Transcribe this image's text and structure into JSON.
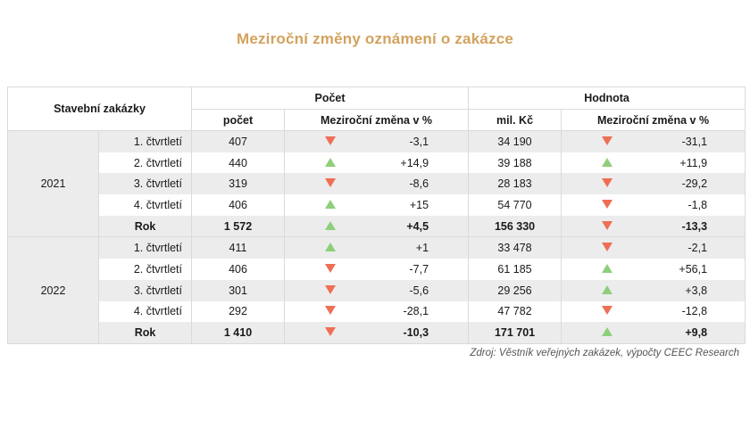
{
  "title": "Meziroční změny oznámení o zakázce",
  "header": {
    "row_label": "Stavební zakázky",
    "group_count": "Počet",
    "group_value": "Hodnota",
    "col_count": "počet",
    "col_change": "Meziroční změna v %",
    "col_value": "mil. Kč",
    "col_change2": "Meziroční změna v %"
  },
  "colors": {
    "up": "#8fce7a",
    "down": "#ee6f55",
    "title": "#d3a25d",
    "shade": "#ececec"
  },
  "years": [
    {
      "year": "2021",
      "rows": [
        {
          "label": "1. čtvrtletí",
          "count": "407",
          "count_dir": "down",
          "count_change": "-3,1",
          "value": "34 190",
          "value_dir": "down",
          "value_change": "-31,1"
        },
        {
          "label": "2. čtvrtletí",
          "count": "440",
          "count_dir": "up",
          "count_change": "+14,9",
          "value": "39 188",
          "value_dir": "up",
          "value_change": "+11,9"
        },
        {
          "label": "3. čtvrtletí",
          "count": "319",
          "count_dir": "down",
          "count_change": "-8,6",
          "value": "28 183",
          "value_dir": "down",
          "value_change": "-29,2"
        },
        {
          "label": "4. čtvrtletí",
          "count": "406",
          "count_dir": "up",
          "count_change": "+15",
          "value": "54 770",
          "value_dir": "down",
          "value_change": "-1,8"
        },
        {
          "label": "Rok",
          "count": "1 572",
          "count_dir": "up",
          "count_change": "+4,5",
          "value": "156 330",
          "value_dir": "down",
          "value_change": "-13,3"
        }
      ]
    },
    {
      "year": "2022",
      "rows": [
        {
          "label": "1. čtvrtletí",
          "count": "411",
          "count_dir": "up",
          "count_change": "+1",
          "value": "33 478",
          "value_dir": "down",
          "value_change": "-2,1"
        },
        {
          "label": "2. čtvrtletí",
          "count": "406",
          "count_dir": "down",
          "count_change": "-7,7",
          "value": "61 185",
          "value_dir": "up",
          "value_change": "+56,1"
        },
        {
          "label": "3. čtvrtletí",
          "count": "301",
          "count_dir": "down",
          "count_change": "-5,6",
          "value": "29 256",
          "value_dir": "up",
          "value_change": "+3,8"
        },
        {
          "label": "4. čtvrtletí",
          "count": "292",
          "count_dir": "down",
          "count_change": "-28,1",
          "value": "47 782",
          "value_dir": "down",
          "value_change": "-12,8"
        },
        {
          "label": "Rok",
          "count": "1 410",
          "count_dir": "down",
          "count_change": "-10,3",
          "value": "171 701",
          "value_dir": "up",
          "value_change": "+9,8"
        }
      ]
    }
  ],
  "source": "Zdroj: Věstník veřejných zakázek, výpočty CEEC Research"
}
